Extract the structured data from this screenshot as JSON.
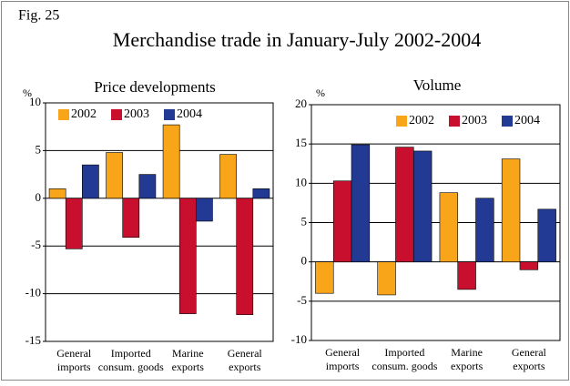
{
  "figure": "Fig. 25",
  "title": "Merchandise trade in January-July 2002-2004",
  "chart_data": [
    {
      "type": "bar",
      "title": "Price developments",
      "y_label": "%",
      "categories": [
        [
          "General",
          "imports"
        ],
        [
          "Imported",
          "consum. goods"
        ],
        [
          "Marine",
          "exports"
        ],
        [
          "General",
          "exports"
        ]
      ],
      "series": [
        {
          "name": "2002",
          "color": "#f9a51a",
          "values": [
            1.0,
            4.8,
            7.7,
            4.6
          ]
        },
        {
          "name": "2003",
          "color": "#c8102e",
          "values": [
            -5.3,
            -4.1,
            -12.1,
            -12.2
          ]
        },
        {
          "name": "2004",
          "color": "#233a95",
          "values": [
            3.5,
            2.5,
            -2.4,
            1.0
          ]
        }
      ],
      "ylim": [
        -15,
        10
      ],
      "yticks": [
        -15,
        -10,
        -5,
        0,
        5,
        10
      ],
      "grid": true,
      "legend": "top-left"
    },
    {
      "type": "bar",
      "title": "Volume",
      "y_label": "%",
      "categories": [
        [
          "General",
          "imports"
        ],
        [
          "Imported",
          "consum. goods"
        ],
        [
          "Marine",
          "exports"
        ],
        [
          "General",
          "exports"
        ]
      ],
      "series": [
        {
          "name": "2002",
          "color": "#f9a51a",
          "values": [
            -4.0,
            -4.2,
            8.8,
            13.1
          ]
        },
        {
          "name": "2003",
          "color": "#c8102e",
          "values": [
            10.3,
            14.6,
            -3.5,
            -1.0
          ]
        },
        {
          "name": "2004",
          "color": "#233a95",
          "values": [
            14.9,
            14.1,
            8.1,
            6.7
          ]
        }
      ],
      "ylim": [
        -10,
        20
      ],
      "yticks": [
        -10,
        -5,
        0,
        5,
        10,
        15,
        20
      ],
      "grid": true,
      "legend": "top-right"
    }
  ]
}
